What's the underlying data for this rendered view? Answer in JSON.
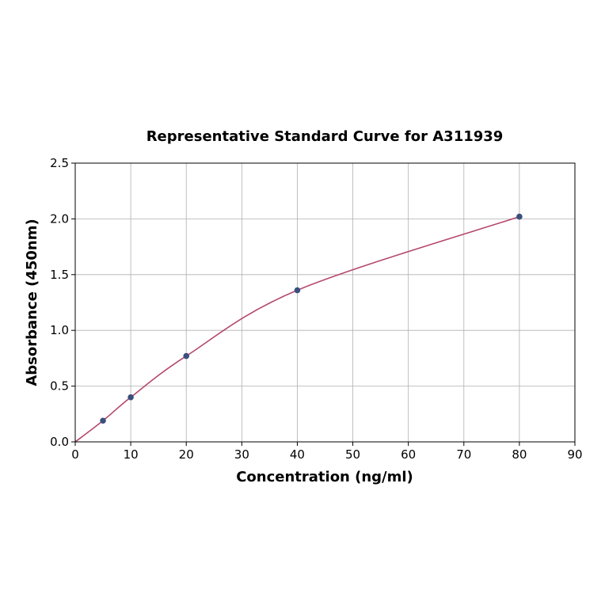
{
  "chart_data": {
    "type": "scatter",
    "title": "Representative Standard Curve for A311939",
    "xlabel": "Concentration (ng/ml)",
    "ylabel": "Absorbance (450nm)",
    "xlim": [
      0,
      90
    ],
    "ylim": [
      0,
      2.5
    ],
    "xticks": [
      0,
      10,
      20,
      30,
      40,
      50,
      60,
      70,
      80,
      90
    ],
    "yticks": [
      "0.0",
      "0.5",
      "1.0",
      "1.5",
      "2.0",
      "2.5"
    ],
    "grid": true,
    "points": [
      {
        "x": 5,
        "y": 0.19
      },
      {
        "x": 10,
        "y": 0.4
      },
      {
        "x": 20,
        "y": 0.77
      },
      {
        "x": 40,
        "y": 1.36
      },
      {
        "x": 80,
        "y": 2.02
      }
    ],
    "fit_curve": {
      "from_origin": true
    },
    "colors": {
      "points": "#3b4f7c",
      "curve": "#b5476e",
      "grid": "#b0b0b0"
    }
  }
}
